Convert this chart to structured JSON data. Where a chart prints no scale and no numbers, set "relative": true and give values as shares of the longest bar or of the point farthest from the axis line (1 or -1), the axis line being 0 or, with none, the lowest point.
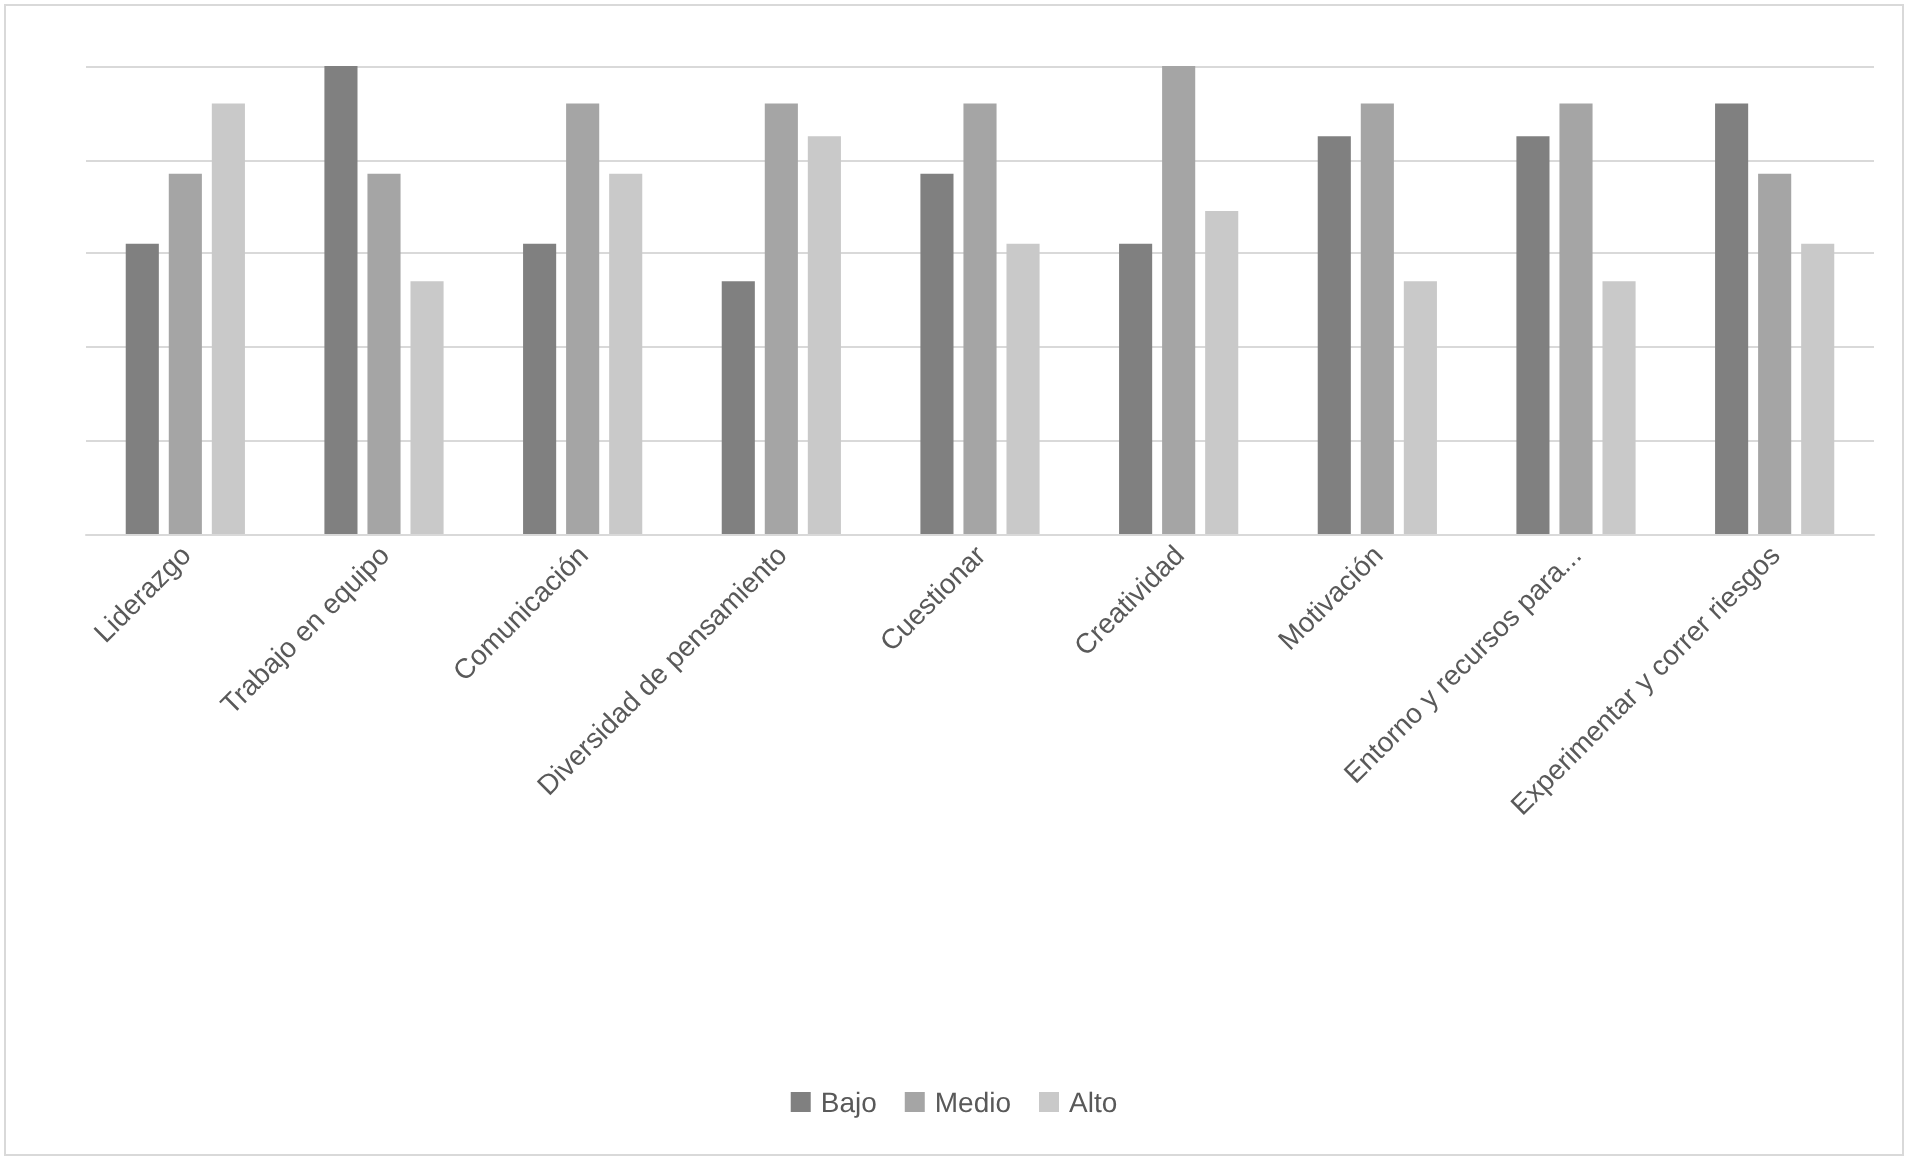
{
  "chart_data": {
    "type": "bar",
    "relative": true,
    "grid": "y",
    "legend": "bottom",
    "categories": [
      "Liderazgo",
      "Trabajo en equipo",
      "Comunicación",
      "Diversidad de pensamiento",
      "Cuestionar",
      "Creatividad",
      "Motivación",
      "Entorno y recursos para...",
      "Experimentar y correr riesgos"
    ],
    "series": [
      {
        "name": "Bajo",
        "color": "#808080",
        "values": [
          0.62,
          1,
          0.62,
          0.54,
          0.77,
          0.62,
          0.85,
          0.85,
          0.92
        ]
      },
      {
        "name": "Medio",
        "color": "#a5a5a5",
        "values": [
          0.77,
          0.77,
          0.92,
          0.92,
          0.92,
          1,
          0.92,
          0.92,
          0.77
        ]
      },
      {
        "name": "Alto",
        "color": "#c9c9c9",
        "values": [
          0.92,
          0.54,
          0.77,
          0.85,
          0.62,
          0.69,
          0.54,
          0.54,
          0.62
        ]
      }
    ]
  }
}
